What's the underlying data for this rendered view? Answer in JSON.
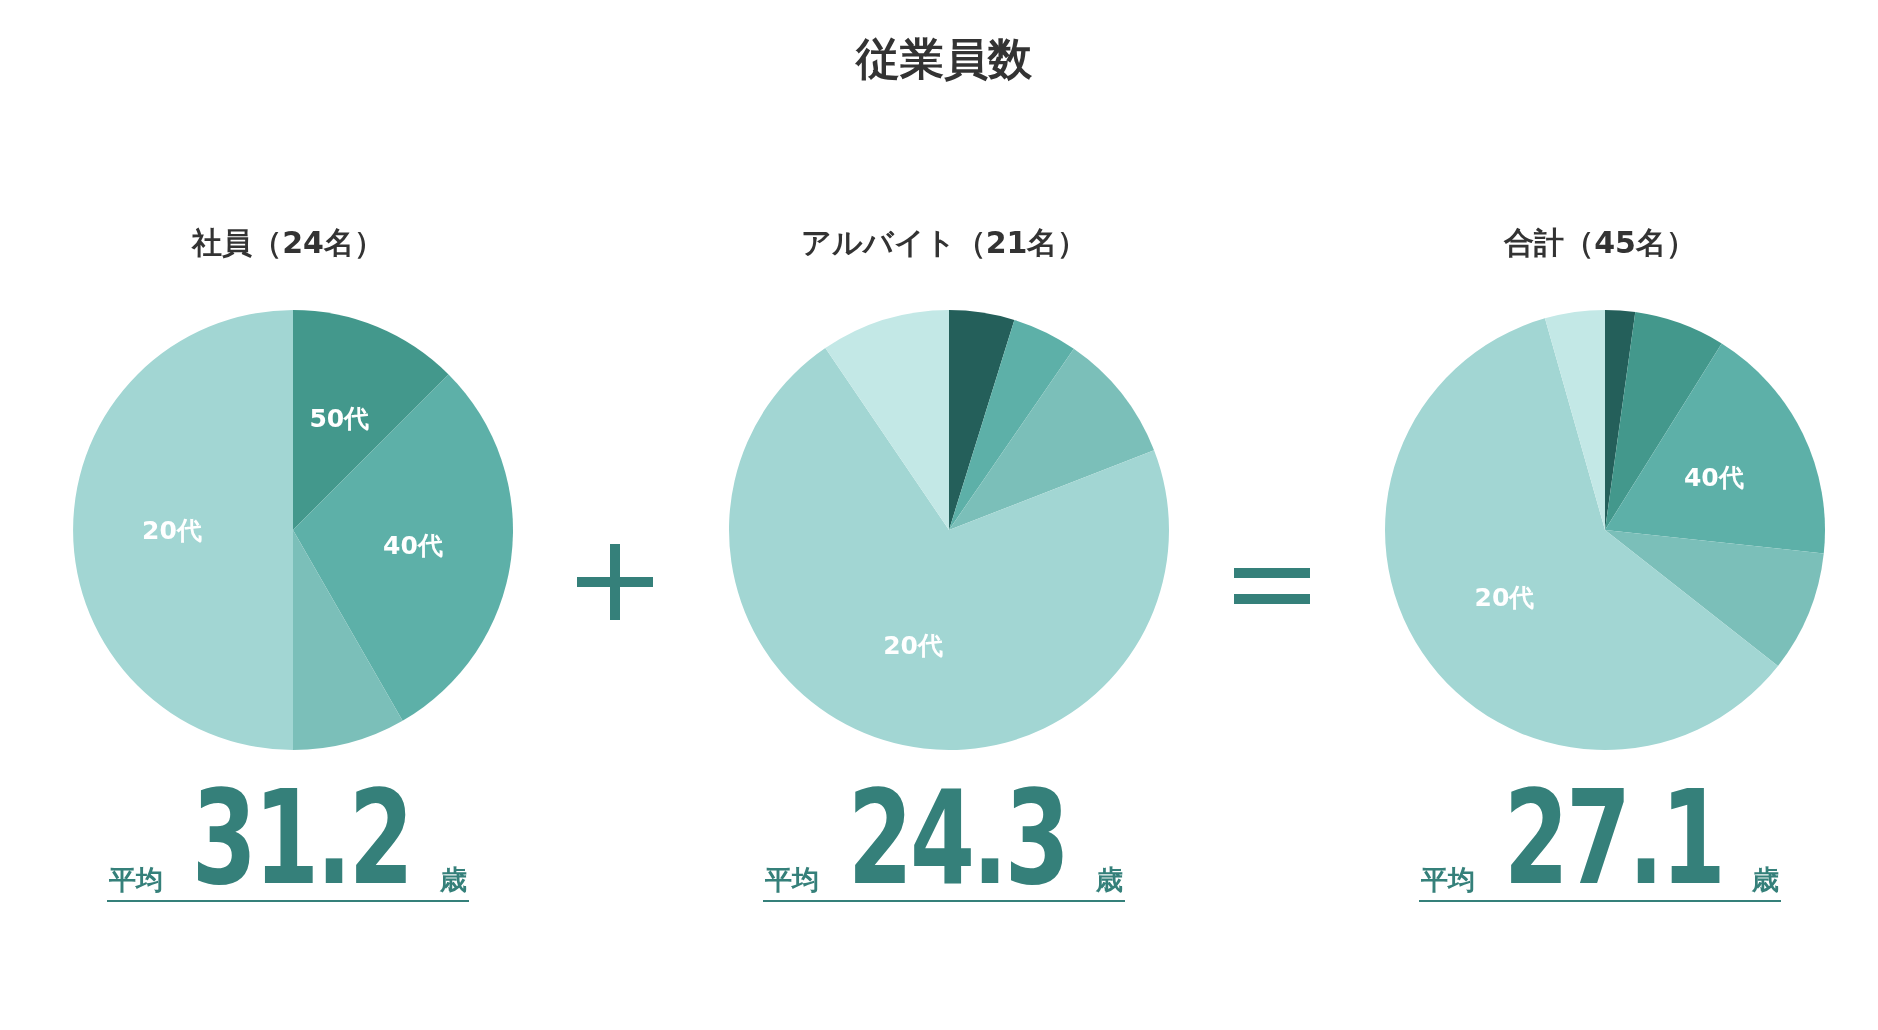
{
  "chart_data": [
    {
      "type": "pie",
      "subtitle": "社員（24名）",
      "categories": [
        "50代",
        "40代",
        null,
        "20代"
      ],
      "values": [
        12.5,
        29.2,
        8.3,
        50.0
      ],
      "colors": [
        "#43988c",
        "#5db0a8",
        "#7bbfb9",
        "#a2d6d3"
      ],
      "annotations": [
        "平均",
        "31.2",
        "歳"
      ]
    },
    {
      "type": "pie",
      "title": "従業員数",
      "subtitle": "アルバイト（21名）",
      "categories": [
        null,
        null,
        null,
        "20代",
        null
      ],
      "values": [
        4.8,
        4.8,
        9.5,
        71.4,
        9.5
      ],
      "colors": [
        "#245f5a",
        "#5db0a8",
        "#7bbfb9",
        "#a2d6d3",
        "#c3e8e6"
      ],
      "annotations": [
        "平均",
        "24.3",
        "歳"
      ]
    },
    {
      "type": "pie",
      "subtitle": "合計（45名）",
      "categories": [
        null,
        null,
        "40代",
        null,
        "20代",
        null
      ],
      "values": [
        2.2,
        6.7,
        17.8,
        8.9,
        60.0,
        4.4
      ],
      "colors": [
        "#245f5a",
        "#43988c",
        "#5db0a8",
        "#7bbfb9",
        "#a2d6d3",
        "#c3e8e6"
      ],
      "annotations": [
        "平均",
        "27.1",
        "歳"
      ]
    }
  ]
}
